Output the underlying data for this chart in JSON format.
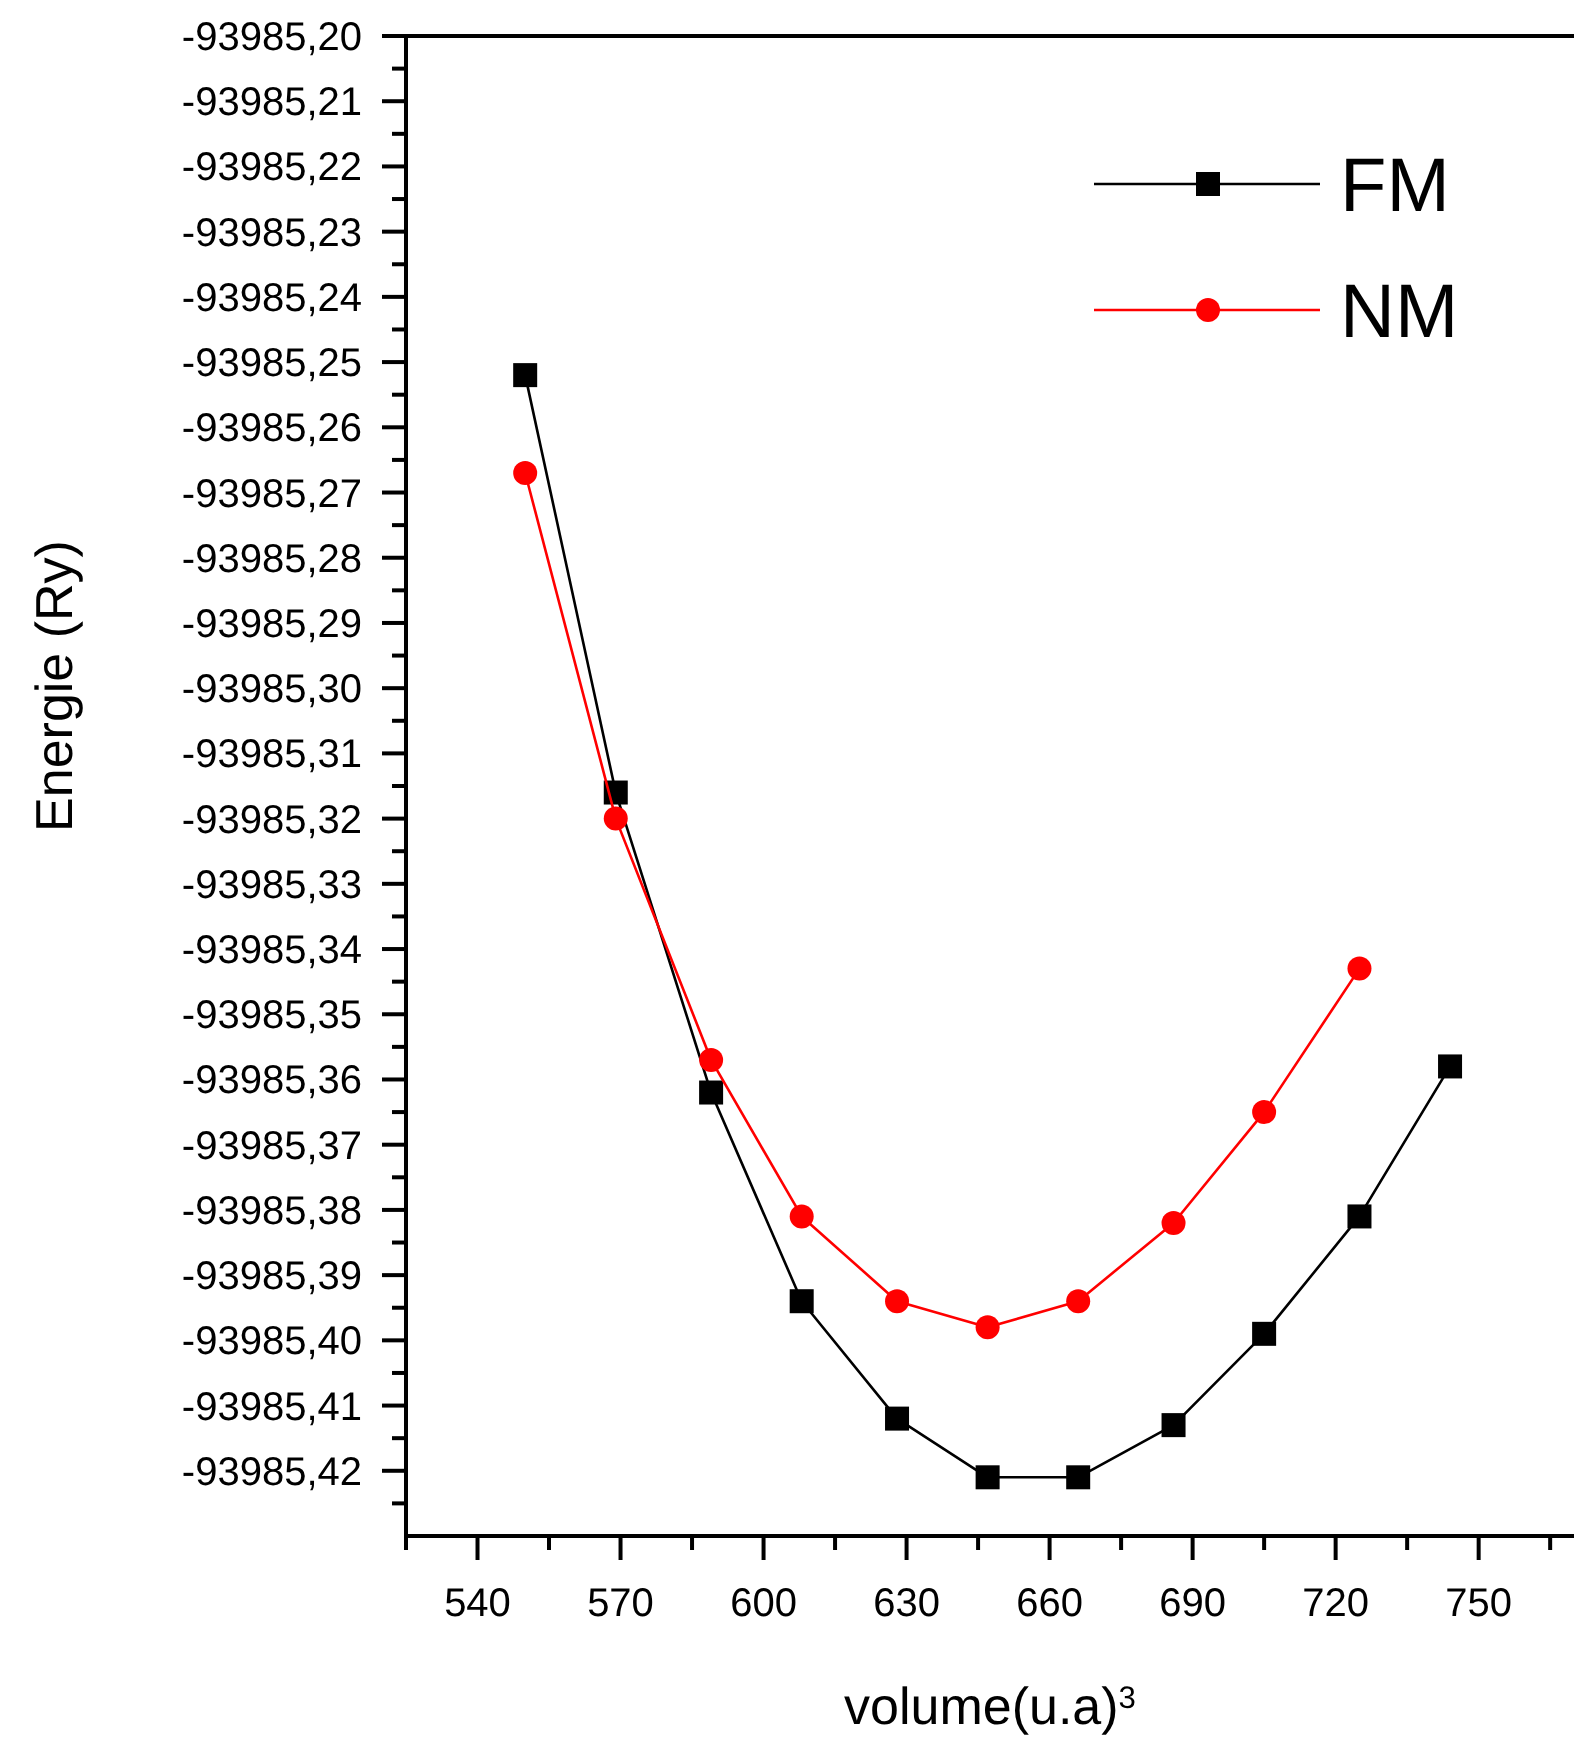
{
  "chart_data": {
    "type": "line",
    "xlabel": "volume(u.a)$^{3}$",
    "ylabel": "Energie (Ry)",
    "x": [
      550,
      569,
      589,
      608,
      628,
      647,
      666,
      686,
      705,
      725,
      744
    ],
    "series": [
      {
        "name": "FM",
        "color": "#000000",
        "marker": "square",
        "values": [
          -93985.252,
          -93985.316,
          -93985.362,
          -93985.394,
          -93985.412,
          -93985.421,
          -93985.421,
          -93985.413,
          -93985.399,
          -93985.381,
          -93985.358
        ]
      },
      {
        "name": "NM",
        "color": "#ff0000",
        "marker": "circle",
        "values": [
          -93985.267,
          -93985.32,
          -93985.357,
          -93985.381,
          -93985.394,
          -93985.398,
          -93985.394,
          -93985.382,
          -93985.365,
          -93985.343,
          null
        ]
      }
    ],
    "xlim": [
      525,
      770
    ],
    "ylim": [
      -93985.43,
      -93985.2
    ],
    "xticks": [
      {
        "value": 525,
        "label": null
      },
      540,
      {
        "value": 555,
        "label": null
      },
      570,
      {
        "value": 585,
        "label": null
      },
      600,
      {
        "value": 615,
        "label": null
      },
      630,
      {
        "value": 645,
        "label": null
      },
      660,
      {
        "value": 675,
        "label": null
      },
      690,
      {
        "value": 705,
        "label": null
      },
      720,
      {
        "value": 735,
        "label": null
      },
      750,
      {
        "value": 765,
        "label": null
      }
    ],
    "yticks": [
      {
        "value": -93985.2,
        "label": "-93985,20"
      },
      {
        "value": -93985.205,
        "label": null
      },
      {
        "value": -93985.21,
        "label": "-93985,21"
      },
      {
        "value": -93985.215,
        "label": null
      },
      {
        "value": -93985.22,
        "label": "-93985,22"
      },
      {
        "value": -93985.225,
        "label": null
      },
      {
        "value": -93985.23,
        "label": "-93985,23"
      },
      {
        "value": -93985.235,
        "label": null
      },
      {
        "value": -93985.24,
        "label": "-93985,24"
      },
      {
        "value": -93985.245,
        "label": null
      },
      {
        "value": -93985.25,
        "label": "-93985,25"
      },
      {
        "value": -93985.255,
        "label": null
      },
      {
        "value": -93985.26,
        "label": "-93985,26"
      },
      {
        "value": -93985.265,
        "label": null
      },
      {
        "value": -93985.27,
        "label": "-93985,27"
      },
      {
        "value": -93985.275,
        "label": null
      },
      {
        "value": -93985.28,
        "label": "-93985,28"
      },
      {
        "value": -93985.285,
        "label": null
      },
      {
        "value": -93985.29,
        "label": "-93985,29"
      },
      {
        "value": -93985.295,
        "label": null
      },
      {
        "value": -93985.3,
        "label": "-93985,30"
      },
      {
        "value": -93985.305,
        "label": null
      },
      {
        "value": -93985.31,
        "label": "-93985,31"
      },
      {
        "value": -93985.315,
        "label": null
      },
      {
        "value": -93985.32,
        "label": "-93985,32"
      },
      {
        "value": -93985.325,
        "label": null
      },
      {
        "value": -93985.33,
        "label": "-93985,33"
      },
      {
        "value": -93985.335,
        "label": null
      },
      {
        "value": -93985.34,
        "label": "-93985,34"
      },
      {
        "value": -93985.345,
        "label": null
      },
      {
        "value": -93985.35,
        "label": "-93985,35"
      },
      {
        "value": -93985.355,
        "label": null
      },
      {
        "value": -93985.36,
        "label": "-93985,36"
      },
      {
        "value": -93985.365,
        "label": null
      },
      {
        "value": -93985.37,
        "label": "-93985,37"
      },
      {
        "value": -93985.375,
        "label": null
      },
      {
        "value": -93985.38,
        "label": "-93985,38"
      },
      {
        "value": -93985.385,
        "label": null
      },
      {
        "value": -93985.39,
        "label": "-93985,39"
      },
      {
        "value": -93985.395,
        "label": null
      },
      {
        "value": -93985.4,
        "label": "-93985,40"
      },
      {
        "value": -93985.405,
        "label": null
      },
      {
        "value": -93985.41,
        "label": "-93985,41"
      },
      {
        "value": -93985.415,
        "label": null
      },
      {
        "value": -93985.42,
        "label": "-93985,42"
      },
      {
        "value": -93985.425,
        "label": null
      }
    ],
    "legend": "top right",
    "line_style": "solid",
    "grid": false
  }
}
